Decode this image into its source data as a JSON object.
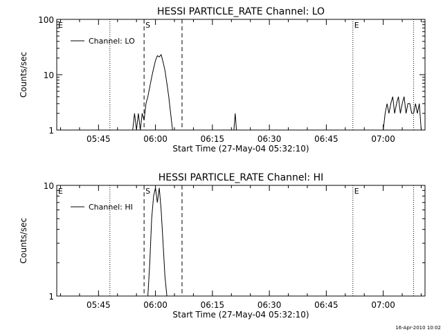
{
  "timestamp": "16-Apr-2010 10:02",
  "chart_data": [
    {
      "type": "line",
      "title": "HESSI PARTICLE_RATE Channel: LO",
      "xlabel": "Start Time (27-May-04 05:32:10)",
      "ylabel": "Counts/sec",
      "yscale": "log",
      "ylim": [
        1,
        100
      ],
      "xlim": [
        "05:34",
        "07:11"
      ],
      "y_ticks": [
        "1",
        "10",
        "100"
      ],
      "x_ticks": [
        "05:45",
        "06:00",
        "06:15",
        "06:30",
        "06:45",
        "07:00"
      ],
      "legend": {
        "label": "Channel: LO",
        "placement": "top-left"
      },
      "markers": [
        {
          "label": "E",
          "time": "05:34",
          "style": "none"
        },
        {
          "label": "",
          "time": "05:48",
          "style": "dotted"
        },
        {
          "label": "S",
          "time": "05:57",
          "style": "dashed"
        },
        {
          "label": "",
          "time": "06:07",
          "style": "dashed"
        },
        {
          "label": "E",
          "time": "06:52",
          "style": "dotted"
        },
        {
          "label": "",
          "time": "07:08",
          "style": "dotted"
        }
      ],
      "series": [
        {
          "name": "Channel: LO",
          "points": [
            [
              "05:54:00",
              1
            ],
            [
              "05:54:30",
              2
            ],
            [
              "05:55:00",
              1
            ],
            [
              "05:55:30",
              2
            ],
            [
              "05:56:00",
              1
            ],
            [
              "05:56:30",
              2
            ],
            [
              "05:57:00",
              1.5
            ],
            [
              "05:57:30",
              3
            ],
            [
              "05:58:00",
              4
            ],
            [
              "05:58:30",
              6
            ],
            [
              "05:59:00",
              9
            ],
            [
              "05:59:30",
              13
            ],
            [
              "06:00:00",
              18
            ],
            [
              "06:00:30",
              22
            ],
            [
              "06:01:00",
              21
            ],
            [
              "06:01:30",
              23
            ],
            [
              "06:02:00",
              17
            ],
            [
              "06:02:30",
              12
            ],
            [
              "06:03:00",
              7
            ],
            [
              "06:03:30",
              4
            ],
            [
              "06:04:00",
              2
            ],
            [
              "06:04:30",
              1
            ],
            [
              "06:20:40",
              1
            ],
            [
              "06:21:00",
              2
            ],
            [
              "06:21:20",
              1
            ],
            [
              "07:00:00",
              1
            ],
            [
              "07:00:30",
              2
            ],
            [
              "07:01:00",
              3
            ],
            [
              "07:01:30",
              2
            ],
            [
              "07:02:00",
              3
            ],
            [
              "07:02:30",
              4
            ],
            [
              "07:03:00",
              2
            ],
            [
              "07:03:30",
              3
            ],
            [
              "07:04:00",
              4
            ],
            [
              "07:04:30",
              2
            ],
            [
              "07:05:00",
              3
            ],
            [
              "07:05:30",
              4
            ],
            [
              "07:06:00",
              2
            ],
            [
              "07:06:30",
              3
            ],
            [
              "07:07:00",
              3
            ],
            [
              "07:07:30",
              2
            ],
            [
              "07:08:00",
              2
            ],
            [
              "07:08:30",
              3
            ],
            [
              "07:09:00",
              2
            ],
            [
              "07:09:30",
              3
            ],
            [
              "07:10:00",
              1
            ]
          ]
        }
      ]
    },
    {
      "type": "line",
      "title": "HESSI PARTICLE_RATE Channel: HI",
      "xlabel": "Start Time (27-May-04 05:32:10)",
      "ylabel": "Counts/sec",
      "yscale": "log",
      "ylim": [
        1,
        10
      ],
      "xlim": [
        "05:34",
        "07:11"
      ],
      "y_ticks": [
        "1",
        "10"
      ],
      "x_ticks": [
        "05:45",
        "06:00",
        "06:15",
        "06:30",
        "06:45",
        "07:00"
      ],
      "legend": {
        "label": "Channel: HI",
        "placement": "top-left"
      },
      "markers": [
        {
          "label": "E",
          "time": "05:34",
          "style": "none"
        },
        {
          "label": "",
          "time": "05:48",
          "style": "dotted"
        },
        {
          "label": "S",
          "time": "05:57",
          "style": "dashed"
        },
        {
          "label": "",
          "time": "06:07",
          "style": "dashed"
        },
        {
          "label": "E",
          "time": "06:52",
          "style": "dotted"
        },
        {
          "label": "",
          "time": "07:08",
          "style": "dotted"
        }
      ],
      "series": [
        {
          "name": "Channel: HI",
          "points": [
            [
              "05:58:00",
              1
            ],
            [
              "05:58:30",
              2
            ],
            [
              "05:59:00",
              5
            ],
            [
              "05:59:30",
              8
            ],
            [
              "06:00:00",
              9.5
            ],
            [
              "06:00:30",
              7
            ],
            [
              "06:01:00",
              9.5
            ],
            [
              "06:01:30",
              6
            ],
            [
              "06:02:00",
              3
            ],
            [
              "06:02:30",
              1.5
            ],
            [
              "06:03:00",
              1
            ]
          ]
        }
      ]
    }
  ]
}
